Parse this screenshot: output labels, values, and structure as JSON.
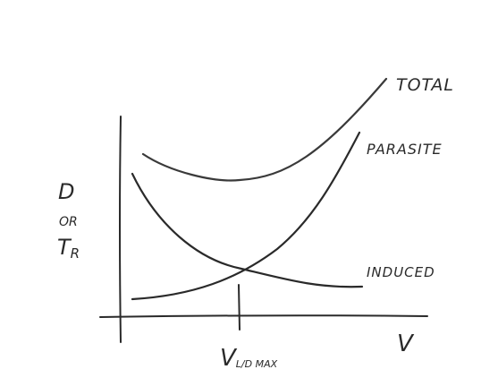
{
  "diagram": {
    "labels": {
      "total": "TOTAL",
      "parasite": "PARASITE",
      "induced": "INDUCED",
      "y_axis_line1": "D",
      "y_axis_line2": "OR",
      "y_axis_line3": "T",
      "y_axis_subscript": "R",
      "x_axis": "V",
      "x_marker_main": "V",
      "x_marker_subscript": "L/D MAX"
    },
    "colors": {
      "ink": "#2a2a2a",
      "paper": "#ffffff"
    }
  }
}
